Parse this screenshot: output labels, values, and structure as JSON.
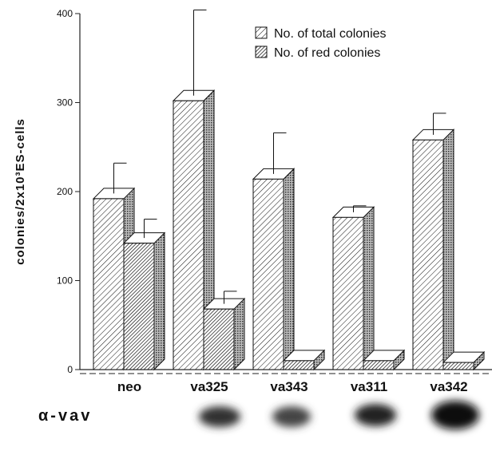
{
  "chart_data": {
    "type": "bar3d",
    "y_label": "colonies/2x10³ES-cells",
    "categories": [
      "neo",
      "va325",
      "va343",
      "va311",
      "va342"
    ],
    "series": [
      {
        "name": "No. of total colonies",
        "color": "#111111",
        "values": [
          192,
          302,
          214,
          171,
          258
        ],
        "errors": [
          40,
          102,
          52,
          13,
          30
        ]
      },
      {
        "name": "No. of red colonies",
        "color": "#111111",
        "values": [
          142,
          68,
          10,
          10,
          8
        ],
        "errors": [
          27,
          20,
          null,
          null,
          null
        ]
      }
    ],
    "ylim": [
      0,
      400
    ],
    "yticks": [
      0,
      100,
      200,
      300,
      400
    ],
    "blot_label": "α-vav"
  }
}
